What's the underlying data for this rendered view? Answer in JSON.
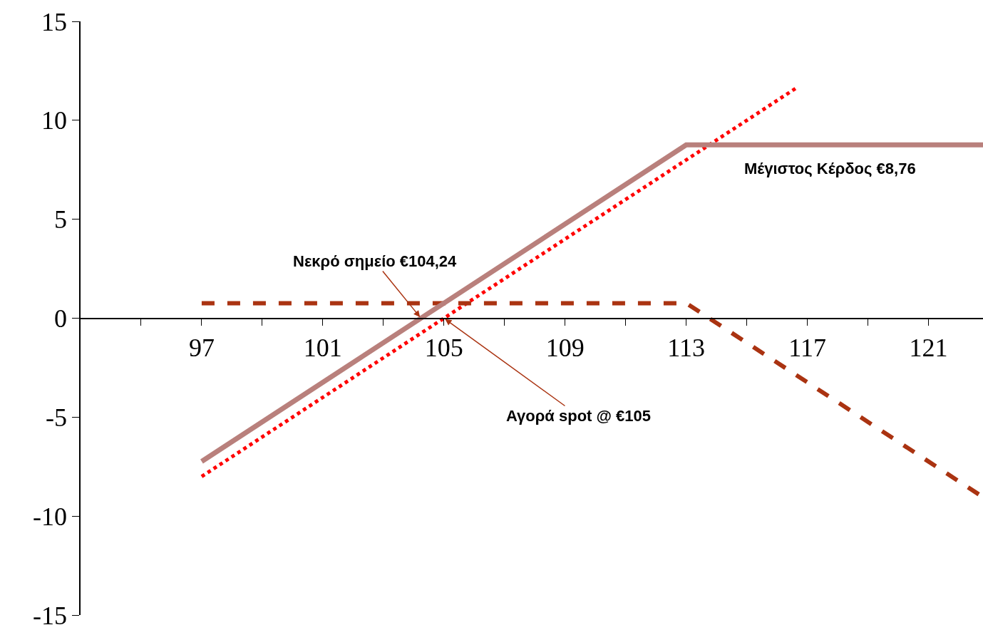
{
  "chart_data": {
    "type": "line",
    "xlim": [
      93,
      122.8
    ],
    "ylim": [
      -15,
      15
    ],
    "xticks": [
      {
        "value": 95,
        "label": null
      },
      97,
      {
        "value": 99,
        "label": null
      },
      101,
      {
        "value": 103,
        "label": null
      },
      105,
      {
        "value": 107,
        "label": null
      },
      109,
      {
        "value": 111,
        "label": null
      },
      113,
      {
        "value": 115,
        "label": null
      },
      117,
      {
        "value": 119,
        "label": null
      },
      121
    ],
    "yticks": [
      -15,
      -10,
      -5,
      0,
      5,
      10,
      15
    ],
    "series": [
      {
        "color": "#ff0000",
        "line_style": "dotted",
        "x": [
          97,
          116.7
        ],
        "values": [
          -8,
          11.7
        ]
      },
      {
        "color": "#aa3311",
        "line_style": "dashed",
        "x": [
          97,
          113,
          122.8
        ],
        "values": [
          0.76,
          0.76,
          -9.04
        ]
      },
      {
        "color": "#b9807c",
        "line_style": "solid",
        "x": [
          97,
          113,
          122.8
        ],
        "values": [
          -7.24,
          8.76,
          8.76
        ]
      }
    ],
    "annotations": [
      {
        "text": "Νεκρό σημείο €104,24",
        "x": 104.24,
        "y": 0
      },
      {
        "text": "Αγορά spot @ €105",
        "x": 105,
        "y": 0
      },
      {
        "text": "Μέγιστος Κέρδος €8,76",
        "x": 117.75,
        "y": 8.76
      }
    ],
    "marker": "none"
  }
}
